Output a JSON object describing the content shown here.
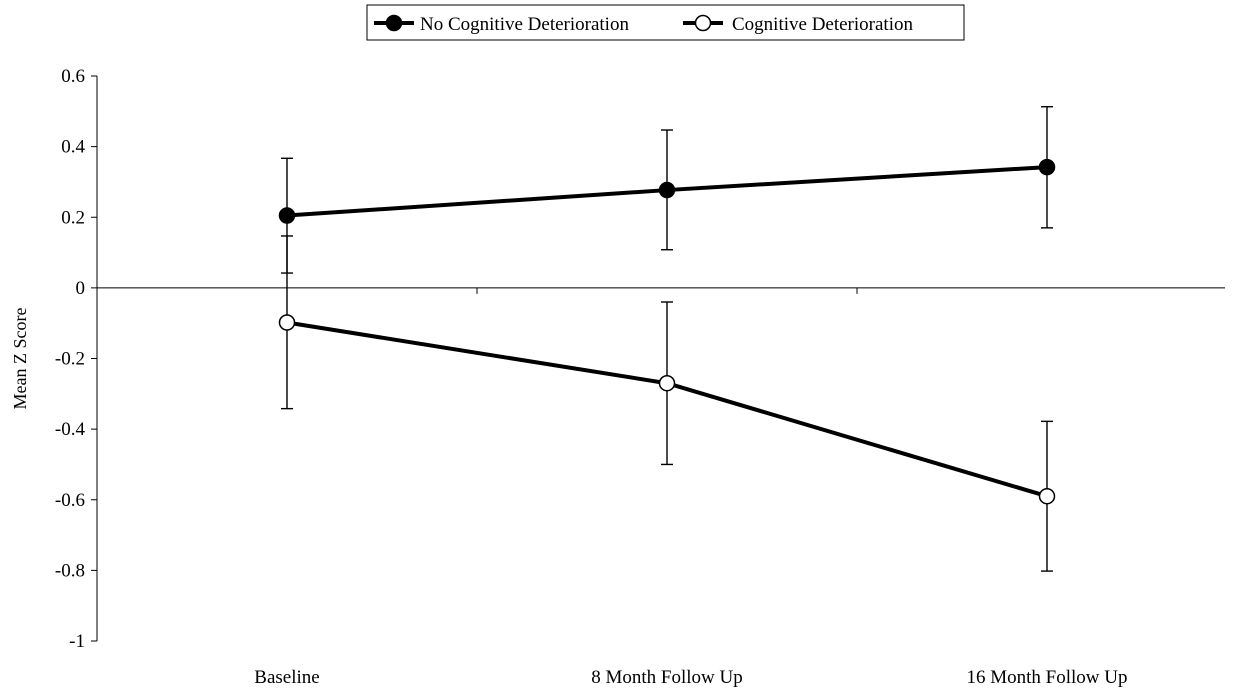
{
  "colors": {
    "line": "#000000",
    "filled_marker": "#000000",
    "open_marker_fill": "#ffffff",
    "background": "#ffffff"
  },
  "chart_data": {
    "type": "line",
    "title": "",
    "xlabel": "",
    "ylabel": "Mean Z Score",
    "ylim": [
      -1,
      0.6
    ],
    "yticks": [
      {
        "value": 0.6,
        "label": "0.6"
      },
      {
        "value": 0.4,
        "label": "0.4"
      },
      {
        "value": 0.2,
        "label": "0.2"
      },
      {
        "value": 0,
        "label": "0"
      },
      {
        "value": -0.2,
        "label": "-0.2"
      },
      {
        "value": -0.4,
        "label": "-0.4"
      },
      {
        "value": -0.6,
        "label": "-0.6"
      },
      {
        "value": -0.8,
        "label": "-0.8"
      },
      {
        "value": -1,
        "label": "-1"
      }
    ],
    "categories": [
      "Baseline",
      "8 Month Follow Up",
      "16 Month Follow Up"
    ],
    "grid": false,
    "legend": "top-center",
    "series": [
      {
        "name": "No Cognitive Deterioration",
        "marker": "filled-circle",
        "values": [
          0.205,
          0.277,
          0.342
        ],
        "error_upper": [
          0.367,
          0.447,
          0.513
        ],
        "error_lower": [
          0.042,
          0.108,
          0.17
        ]
      },
      {
        "name": "Cognitive Deterioration",
        "marker": "open-circle",
        "values": [
          -0.098,
          -0.27,
          -0.59
        ],
        "error_upper": [
          0.147,
          -0.04,
          -0.378
        ],
        "error_lower": [
          -0.342,
          -0.5,
          -0.802
        ]
      }
    ]
  }
}
